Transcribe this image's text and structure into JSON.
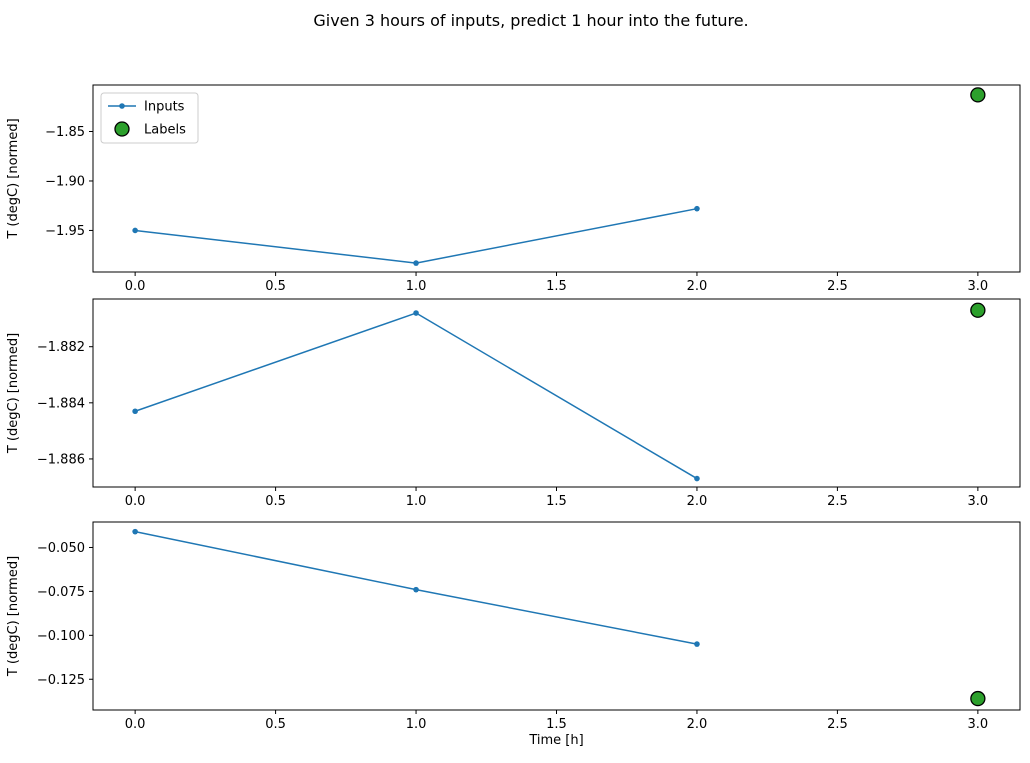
{
  "title": "Given 3 hours of inputs, predict 1 hour into the future.",
  "xlabel": "Time [h]",
  "ylabel": "T (degC) [normed]",
  "colors": {
    "inputs_line": "#1f77b4",
    "labels_fill": "#2ca02c",
    "labels_edge": "#000000",
    "axes_edge": "#000000",
    "legend_border": "#cccccc"
  },
  "legend": {
    "position": "upper left",
    "entries": [
      {
        "label": "Inputs",
        "type": "line"
      },
      {
        "label": "Labels",
        "type": "scatter"
      }
    ]
  },
  "chart_data": [
    {
      "type": "line",
      "ylabel": "T (degC) [normed]",
      "xlim": [
        -0.15,
        3.15
      ],
      "ylim": [
        -1.992,
        -1.803
      ],
      "xticks": [
        0.0,
        0.5,
        1.0,
        1.5,
        2.0,
        2.5,
        3.0
      ],
      "xtick_labels": [
        "0.0",
        "0.5",
        "1.0",
        "1.5",
        "2.0",
        "2.5",
        "3.0"
      ],
      "ytick_values": [
        -1.85,
        -1.9,
        -1.95
      ],
      "ytick_labels": [
        "−1.85",
        "−1.90",
        "−1.95"
      ],
      "grid": false,
      "legend_visible": true,
      "series": [
        {
          "name": "Inputs",
          "type": "line",
          "x": [
            0,
            1,
            2
          ],
          "y": [
            -1.95,
            -1.983,
            -1.928
          ]
        },
        {
          "name": "Labels",
          "type": "scatter",
          "x": [
            3
          ],
          "y": [
            -1.813
          ]
        }
      ]
    },
    {
      "type": "line",
      "ylabel": "T (degC) [normed]",
      "xlim": [
        -0.15,
        3.15
      ],
      "ylim": [
        -1.887,
        -1.8803
      ],
      "xticks": [
        0.0,
        0.5,
        1.0,
        1.5,
        2.0,
        2.5,
        3.0
      ],
      "xtick_labels": [
        "0.0",
        "0.5",
        "1.0",
        "1.5",
        "2.0",
        "2.5",
        "3.0"
      ],
      "ytick_values": [
        -1.882,
        -1.884,
        -1.886
      ],
      "ytick_labels": [
        "−1.882",
        "−1.884",
        "−1.886"
      ],
      "grid": false,
      "legend_visible": false,
      "series": [
        {
          "name": "Inputs",
          "type": "line",
          "x": [
            0,
            1,
            2
          ],
          "y": [
            -1.8843,
            -1.8808,
            -1.8867
          ]
        },
        {
          "name": "Labels",
          "type": "scatter",
          "x": [
            3
          ],
          "y": [
            -1.8807
          ]
        }
      ]
    },
    {
      "type": "line",
      "ylabel": "T (degC) [normed]",
      "xlabel": "Time [h]",
      "xlim": [
        -0.15,
        3.15
      ],
      "ylim": [
        -0.1425,
        -0.0355
      ],
      "xticks": [
        0.0,
        0.5,
        1.0,
        1.5,
        2.0,
        2.5,
        3.0
      ],
      "xtick_labels": [
        "0.0",
        "0.5",
        "1.0",
        "1.5",
        "2.0",
        "2.5",
        "3.0"
      ],
      "ytick_values": [
        -0.05,
        -0.075,
        -0.1,
        -0.125
      ],
      "ytick_labels": [
        "−0.050",
        "−0.075",
        "−0.100",
        "−0.125"
      ],
      "grid": false,
      "legend_visible": false,
      "series": [
        {
          "name": "Inputs",
          "type": "line",
          "x": [
            0,
            1,
            2
          ],
          "y": [
            -0.041,
            -0.074,
            -0.105
          ]
        },
        {
          "name": "Labels",
          "type": "scatter",
          "x": [
            3
          ],
          "y": [
            -0.136
          ]
        }
      ]
    }
  ]
}
